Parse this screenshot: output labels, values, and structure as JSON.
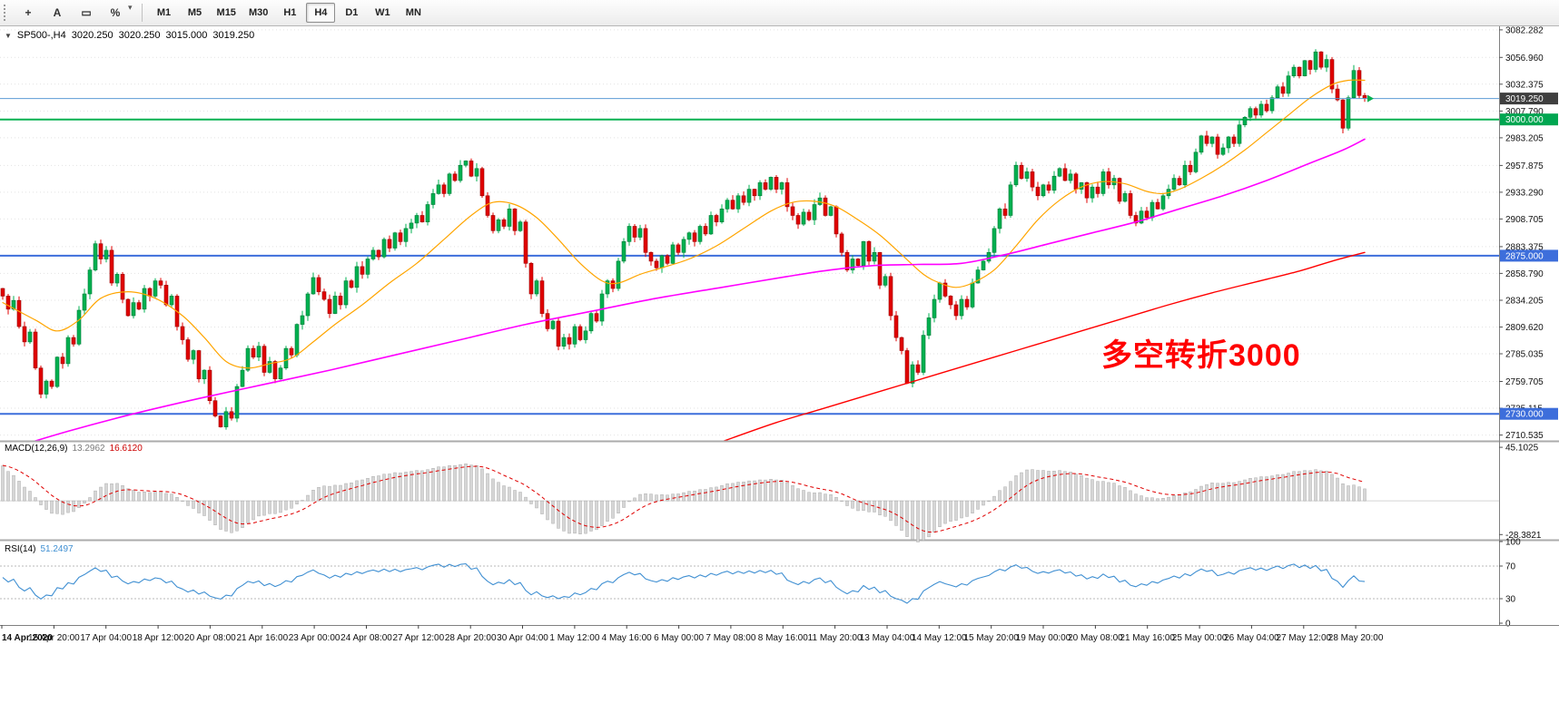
{
  "toolbar": {
    "tool_icons": [
      {
        "name": "crosshair-tool-icon",
        "glyph": "+"
      },
      {
        "name": "text-tool-icon",
        "glyph": "A"
      },
      {
        "name": "shape-tool-icon",
        "glyph": "▭"
      },
      {
        "name": "percent-tool-icon",
        "glyph": "%"
      },
      {
        "name": "toolbar-options-caret-icon",
        "glyph": "▾"
      }
    ],
    "timeframes": [
      {
        "label": "M1",
        "active": false
      },
      {
        "label": "M5",
        "active": false
      },
      {
        "label": "M15",
        "active": false
      },
      {
        "label": "M30",
        "active": false
      },
      {
        "label": "H1",
        "active": false
      },
      {
        "label": "H4",
        "active": true
      },
      {
        "label": "D1",
        "active": false
      },
      {
        "label": "W1",
        "active": false
      },
      {
        "label": "MN",
        "active": false
      }
    ]
  },
  "chart_header": {
    "symbol": "SP500-,H4",
    "open": "3020.250",
    "high": "3020.250",
    "low": "3015.000",
    "close": "3019.250"
  },
  "chart_data": {
    "type": "candlestick",
    "symbol": "SP500-",
    "timeframe": "H4",
    "price_range": [
      2706.0,
      3085.5
    ],
    "first_open": 2845,
    "closes": [
      2838,
      2826,
      2834,
      2810,
      2796,
      2805,
      2772,
      2748,
      2760,
      2755,
      2782,
      2776,
      2800,
      2794,
      2825,
      2840,
      2862,
      2886,
      2872,
      2880,
      2850,
      2858,
      2835,
      2820,
      2832,
      2826,
      2845,
      2838,
      2852,
      2848,
      2830,
      2838,
      2810,
      2798,
      2780,
      2788,
      2762,
      2770,
      2742,
      2728,
      2718,
      2732,
      2726,
      2755,
      2770,
      2790,
      2782,
      2792,
      2768,
      2778,
      2762,
      2772,
      2790,
      2784,
      2812,
      2820,
      2840,
      2855,
      2842,
      2835,
      2822,
      2838,
      2830,
      2852,
      2846,
      2865,
      2858,
      2872,
      2880,
      2874,
      2890,
      2882,
      2896,
      2888,
      2900,
      2905,
      2912,
      2906,
      2922,
      2932,
      2940,
      2932,
      2950,
      2944,
      2958,
      2962,
      2948,
      2955,
      2930,
      2912,
      2898,
      2908,
      2902,
      2918,
      2898,
      2906,
      2868,
      2840,
      2852,
      2822,
      2808,
      2815,
      2792,
      2800,
      2794,
      2810,
      2798,
      2806,
      2822,
      2815,
      2840,
      2852,
      2845,
      2870,
      2888,
      2902,
      2892,
      2900,
      2878,
      2870,
      2864,
      2875,
      2868,
      2885,
      2878,
      2890,
      2896,
      2888,
      2902,
      2895,
      2912,
      2906,
      2918,
      2926,
      2918,
      2930,
      2924,
      2936,
      2930,
      2942,
      2936,
      2947,
      2936,
      2942,
      2920,
      2912,
      2904,
      2915,
      2908,
      2922,
      2928,
      2912,
      2920,
      2895,
      2878,
      2862,
      2872,
      2866,
      2888,
      2870,
      2878,
      2848,
      2856,
      2820,
      2800,
      2788,
      2758,
      2775,
      2768,
      2802,
      2818,
      2835,
      2850,
      2838,
      2830,
      2820,
      2835,
      2828,
      2850,
      2862,
      2870,
      2878,
      2900,
      2918,
      2912,
      2940,
      2958,
      2946,
      2952,
      2938,
      2930,
      2940,
      2935,
      2948,
      2955,
      2944,
      2950,
      2936,
      2942,
      2928,
      2938,
      2932,
      2952,
      2940,
      2946,
      2925,
      2932,
      2912,
      2905,
      2916,
      2910,
      2924,
      2918,
      2930,
      2936,
      2946,
      2940,
      2958,
      2952,
      2970,
      2985,
      2978,
      2984,
      2968,
      2974,
      2984,
      2978,
      2995,
      3002,
      3010,
      3004,
      3014,
      3008,
      3020,
      3030,
      3024,
      3040,
      3048,
      3040,
      3054,
      3046,
      3062,
      3048,
      3055,
      3028,
      3018,
      2992,
      3020,
      3045,
      3022,
      3019.25
    ],
    "colors": {
      "up": "#00B050",
      "down": "#E00000",
      "up_border": "#007a36",
      "down_border": "#990000"
    },
    "moving_averages": [
      {
        "name": "ma-fast",
        "color": "#FFA500",
        "width": 1.2,
        "points": [
          [
            0,
            2832
          ],
          [
            6,
            2816
          ],
          [
            10,
            2806
          ],
          [
            14,
            2816
          ],
          [
            18,
            2836
          ],
          [
            23,
            2842
          ],
          [
            28,
            2836
          ],
          [
            33,
            2820
          ],
          [
            37,
            2800
          ],
          [
            41,
            2778
          ],
          [
            45,
            2772
          ],
          [
            49,
            2776
          ],
          [
            53,
            2781
          ],
          [
            57,
            2796
          ],
          [
            61,
            2812
          ],
          [
            66,
            2830
          ],
          [
            71,
            2850
          ],
          [
            76,
            2868
          ],
          [
            81,
            2890
          ],
          [
            86,
            2912
          ],
          [
            90,
            2924
          ],
          [
            94,
            2922
          ],
          [
            98,
            2910
          ],
          [
            102,
            2890
          ],
          [
            106,
            2868
          ],
          [
            110,
            2852
          ],
          [
            113,
            2850
          ],
          [
            117,
            2858
          ],
          [
            121,
            2864
          ],
          [
            126,
            2872
          ],
          [
            131,
            2884
          ],
          [
            136,
            2900
          ],
          [
            141,
            2916
          ],
          [
            145,
            2924
          ],
          [
            149,
            2925
          ],
          [
            153,
            2920
          ],
          [
            157,
            2908
          ],
          [
            161,
            2894
          ],
          [
            165,
            2876
          ],
          [
            169,
            2858
          ],
          [
            172,
            2850
          ],
          [
            175,
            2846
          ],
          [
            178,
            2850
          ],
          [
            182,
            2862
          ],
          [
            186,
            2884
          ],
          [
            190,
            2908
          ],
          [
            194,
            2926
          ],
          [
            198,
            2938
          ],
          [
            202,
            2943
          ],
          [
            206,
            2941
          ],
          [
            210,
            2934
          ],
          [
            213,
            2932
          ],
          [
            216,
            2936
          ],
          [
            220,
            2946
          ],
          [
            224,
            2958
          ],
          [
            228,
            2972
          ],
          [
            232,
            2988
          ],
          [
            236,
            3004
          ],
          [
            240,
            3020
          ],
          [
            244,
            3032
          ],
          [
            247,
            3036
          ],
          [
            250,
            3036
          ]
        ]
      },
      {
        "name": "ma-mid",
        "color": "#FF00FF",
        "width": 1.6,
        "points": [
          [
            0,
            2696
          ],
          [
            12,
            2714
          ],
          [
            24,
            2730
          ],
          [
            36,
            2744
          ],
          [
            48,
            2757
          ],
          [
            60,
            2770
          ],
          [
            72,
            2784
          ],
          [
            84,
            2798
          ],
          [
            96,
            2812
          ],
          [
            108,
            2824
          ],
          [
            120,
            2836
          ],
          [
            132,
            2846
          ],
          [
            144,
            2856
          ],
          [
            152,
            2862
          ],
          [
            160,
            2866
          ],
          [
            168,
            2867
          ],
          [
            176,
            2868
          ],
          [
            184,
            2876
          ],
          [
            192,
            2886
          ],
          [
            200,
            2896
          ],
          [
            208,
            2906
          ],
          [
            216,
            2918
          ],
          [
            224,
            2930
          ],
          [
            232,
            2944
          ],
          [
            240,
            2960
          ],
          [
            246,
            2972
          ],
          [
            250,
            2982
          ]
        ]
      },
      {
        "name": "ma-slow",
        "color": "#FF0000",
        "width": 1.4,
        "points": [
          [
            124,
            2690
          ],
          [
            134,
            2708
          ],
          [
            142,
            2722
          ],
          [
            150,
            2734
          ],
          [
            158,
            2746
          ],
          [
            166,
            2758
          ],
          [
            174,
            2770
          ],
          [
            182,
            2782
          ],
          [
            190,
            2794
          ],
          [
            198,
            2806
          ],
          [
            206,
            2818
          ],
          [
            214,
            2830
          ],
          [
            222,
            2841
          ],
          [
            230,
            2851
          ],
          [
            238,
            2861
          ],
          [
            244,
            2870
          ],
          [
            250,
            2878
          ]
        ]
      }
    ],
    "hlines": [
      {
        "price": 3000.0,
        "color": "#00B050",
        "width": 2
      },
      {
        "price": 2875.0,
        "color": "#3d6edb",
        "width": 2
      },
      {
        "price": 2730.0,
        "color": "#3d6edb",
        "width": 2
      }
    ],
    "current_price": 3019.25,
    "current_price_color": "#5b9bd5",
    "price_axis": {
      "labels": [
        "3082.282",
        "3056.960",
        "3032.375",
        "3007.790",
        "2983.205",
        "2957.875",
        "2933.290",
        "2908.705",
        "2883.375",
        "2858.790",
        "2834.205",
        "2809.620",
        "2785.035",
        "2759.705",
        "2735.115",
        "2710.535"
      ],
      "tags": [
        {
          "label": "3019.250",
          "price": 3019.25,
          "color": "#3f3f3f"
        },
        {
          "label": "3000.000",
          "price": 3000.0,
          "color": "#00A651"
        },
        {
          "label": "2875.000",
          "price": 2875.0,
          "color": "#3d6edb"
        },
        {
          "label": "2730.000",
          "price": 2730.0,
          "color": "#3d6edb"
        }
      ]
    },
    "annotation": {
      "text": "多空转折3000",
      "color": "#FF0000"
    },
    "macd": {
      "label": "MACD(12,26,9)",
      "main_value": "13.2962",
      "signal_value": "16.6120",
      "periods": [
        12,
        26,
        9
      ],
      "range": [
        -32,
        49
      ],
      "axis_labels": [
        "45.1025",
        "-28.3821"
      ]
    },
    "rsi": {
      "label": "RSI(14)",
      "value": "51.2497",
      "period": 14,
      "levels": [
        70,
        30
      ],
      "axis_labels": [
        "100",
        "70",
        "30",
        "0"
      ]
    },
    "x_axis": {
      "labels": [
        "14 Apr 2020",
        "15 Apr 20:00",
        "17 Apr 04:00",
        "18 Apr 12:00",
        "20 Apr 08:00",
        "21 Apr 16:00",
        "23 Apr 00:00",
        "24 Apr 08:00",
        "27 Apr 12:00",
        "28 Apr 20:00",
        "30 Apr 04:00",
        "1 May 12:00",
        "4 May 16:00",
        "6 May 00:00",
        "7 May 08:00",
        "8 May 16:00",
        "11 May 20:00",
        "13 May 04:00",
        "14 May 12:00",
        "15 May 20:00",
        "19 May 00:00",
        "20 May 08:00",
        "21 May 16:00",
        "25 May 00:00",
        "26 May 04:00",
        "27 May 12:00",
        "28 May 20:00"
      ]
    }
  }
}
